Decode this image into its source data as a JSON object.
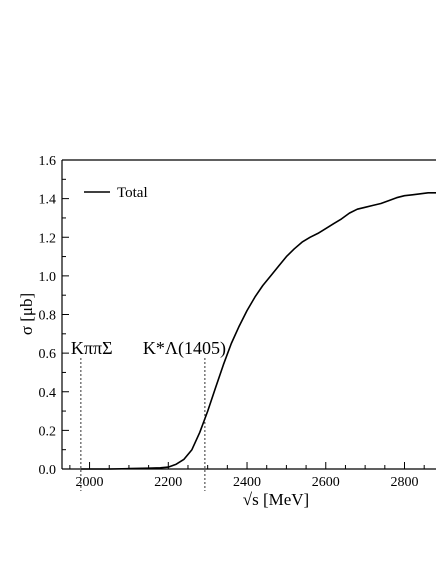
{
  "chart_data": {
    "type": "line",
    "xlabel": "√s [MeV]",
    "ylabel": "σ [μb]",
    "xlim": [
      1930,
      2880
    ],
    "ylim": [
      0.0,
      1.6
    ],
    "xticks": [
      2000,
      2200,
      2400,
      2600,
      2800
    ],
    "yticks": [
      0.0,
      0.2,
      0.4,
      0.6,
      0.8,
      1.0,
      1.2,
      1.4,
      1.6
    ],
    "ytick_labels": [
      "0.0",
      "0.2",
      "0.4",
      "0.6",
      "0.8",
      "1.0",
      "1.2",
      "1.4",
      "1.6"
    ],
    "legend": {
      "position": "top-left",
      "entries": [
        "Total"
      ]
    },
    "grid": false,
    "series": [
      {
        "name": "Total",
        "color": "#000000",
        "x": [
          1978,
          2000,
          2050,
          2100,
          2150,
          2180,
          2200,
          2220,
          2240,
          2260,
          2280,
          2300,
          2320,
          2340,
          2360,
          2380,
          2400,
          2420,
          2440,
          2460,
          2480,
          2500,
          2520,
          2540,
          2560,
          2580,
          2600,
          2620,
          2640,
          2660,
          2680,
          2700,
          2720,
          2740,
          2760,
          2780,
          2800,
          2820,
          2840,
          2860,
          2880
        ],
        "y": [
          0.0,
          0.0,
          0.0,
          0.002,
          0.004,
          0.006,
          0.01,
          0.025,
          0.05,
          0.1,
          0.19,
          0.3,
          0.42,
          0.54,
          0.65,
          0.74,
          0.82,
          0.89,
          0.95,
          1.0,
          1.05,
          1.1,
          1.14,
          1.175,
          1.2,
          1.22,
          1.245,
          1.27,
          1.295,
          1.325,
          1.345,
          1.355,
          1.365,
          1.375,
          1.39,
          1.405,
          1.415,
          1.42,
          1.425,
          1.43,
          1.43
        ]
      }
    ],
    "thresholds": [
      {
        "label": "KππΣ",
        "x": 1978
      },
      {
        "label": "K*Λ(1405)",
        "x": 2293
      }
    ]
  }
}
